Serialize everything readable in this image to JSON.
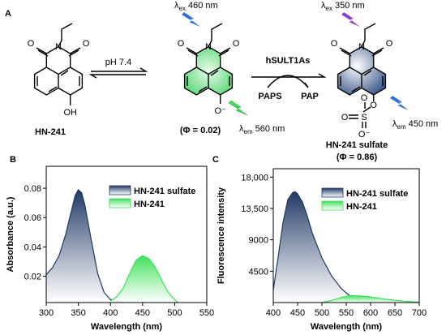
{
  "scheme": {
    "label": "A",
    "condition_1": "pH 7.4",
    "enzyme": "hSULT1As",
    "cofactor_in": "PAPS",
    "cofactor_out": "PAP",
    "molecules": [
      {
        "name": "HN-241",
        "atoms": [
          "O",
          "N",
          "O",
          "OH"
        ]
      },
      {
        "quantum_yield": "(Φ = 0.02)",
        "atoms": [
          "O",
          "N",
          "O",
          "O⁻"
        ],
        "excitation": {
          "symbol": "λ",
          "sub": "ex",
          "value": "460 nm"
        },
        "emission": {
          "symbol": "λ",
          "sub": "em",
          "value": "560 nm"
        }
      },
      {
        "name": "HN-241 sulfate",
        "quantum_yield": "(Φ = 0.86)",
        "atoms": [
          "O",
          "N",
          "O",
          "O",
          "S",
          "O",
          "O",
          "O⁻"
        ],
        "excitation": {
          "symbol": "λ",
          "sub": "ex",
          "value": "350 nm"
        },
        "emission": {
          "symbol": "λ",
          "sub": "em",
          "value": "450 nm"
        }
      }
    ]
  },
  "chart_data": [
    {
      "type": "area",
      "label": "B",
      "xlabel": "Wavelength (nm)",
      "ylabel": "Absorbance (a.u.)",
      "xlim": [
        300,
        550
      ],
      "xticks": [
        300,
        350,
        400,
        450,
        500,
        550
      ],
      "ylim": [
        0.002,
        0.095
      ],
      "yticks": [
        0.02,
        0.04,
        0.06,
        0.08
      ],
      "legend": "upper right",
      "series": [
        {
          "name": "HN-241 sulfate",
          "color": "#1f3864",
          "x": [
            300,
            310,
            320,
            330,
            340,
            345,
            350,
            355,
            360,
            370,
            380,
            390,
            400,
            410,
            420
          ],
          "values": [
            0.021,
            0.026,
            0.034,
            0.048,
            0.066,
            0.075,
            0.079,
            0.077,
            0.069,
            0.045,
            0.022,
            0.009,
            0.004,
            0.003,
            0.002
          ]
        },
        {
          "name": "HN-241",
          "color": "#3ee05a",
          "x": [
            400,
            410,
            420,
            430,
            440,
            450,
            460,
            470,
            480,
            490,
            500,
            505
          ],
          "values": [
            0.003,
            0.006,
            0.012,
            0.022,
            0.031,
            0.034,
            0.032,
            0.026,
            0.017,
            0.009,
            0.004,
            0.002
          ]
        }
      ]
    },
    {
      "type": "area",
      "label": "C",
      "xlabel": "Wavelength (nm)",
      "ylabel": "Fluorescence intensity",
      "xlim": [
        400,
        700
      ],
      "xticks": [
        400,
        450,
        500,
        550,
        600,
        650,
        700
      ],
      "ylim": [
        0,
        19200
      ],
      "yticks": [
        4500,
        9000,
        {
          "value": 13500,
          "label": "13,500"
        },
        {
          "value": 18000,
          "label": "18,000"
        }
      ],
      "legend": "upper right",
      "series": [
        {
          "name": "HN-241 sulfate",
          "color": "#1f3864",
          "x": [
            400,
            410,
            420,
            430,
            440,
            445,
            450,
            460,
            470,
            480,
            500,
            520,
            540,
            560,
            580
          ],
          "values": [
            1800,
            6500,
            11500,
            14800,
            15800,
            15900,
            15600,
            14400,
            12400,
            10000,
            6400,
            3800,
            2000,
            800,
            200
          ]
        },
        {
          "name": "HN-241",
          "color": "#3ee05a",
          "x": [
            500,
            520,
            540,
            560,
            580,
            600,
            630,
            660,
            700
          ],
          "values": [
            0,
            300,
            750,
            1000,
            950,
            800,
            500,
            250,
            50
          ]
        }
      ]
    }
  ]
}
